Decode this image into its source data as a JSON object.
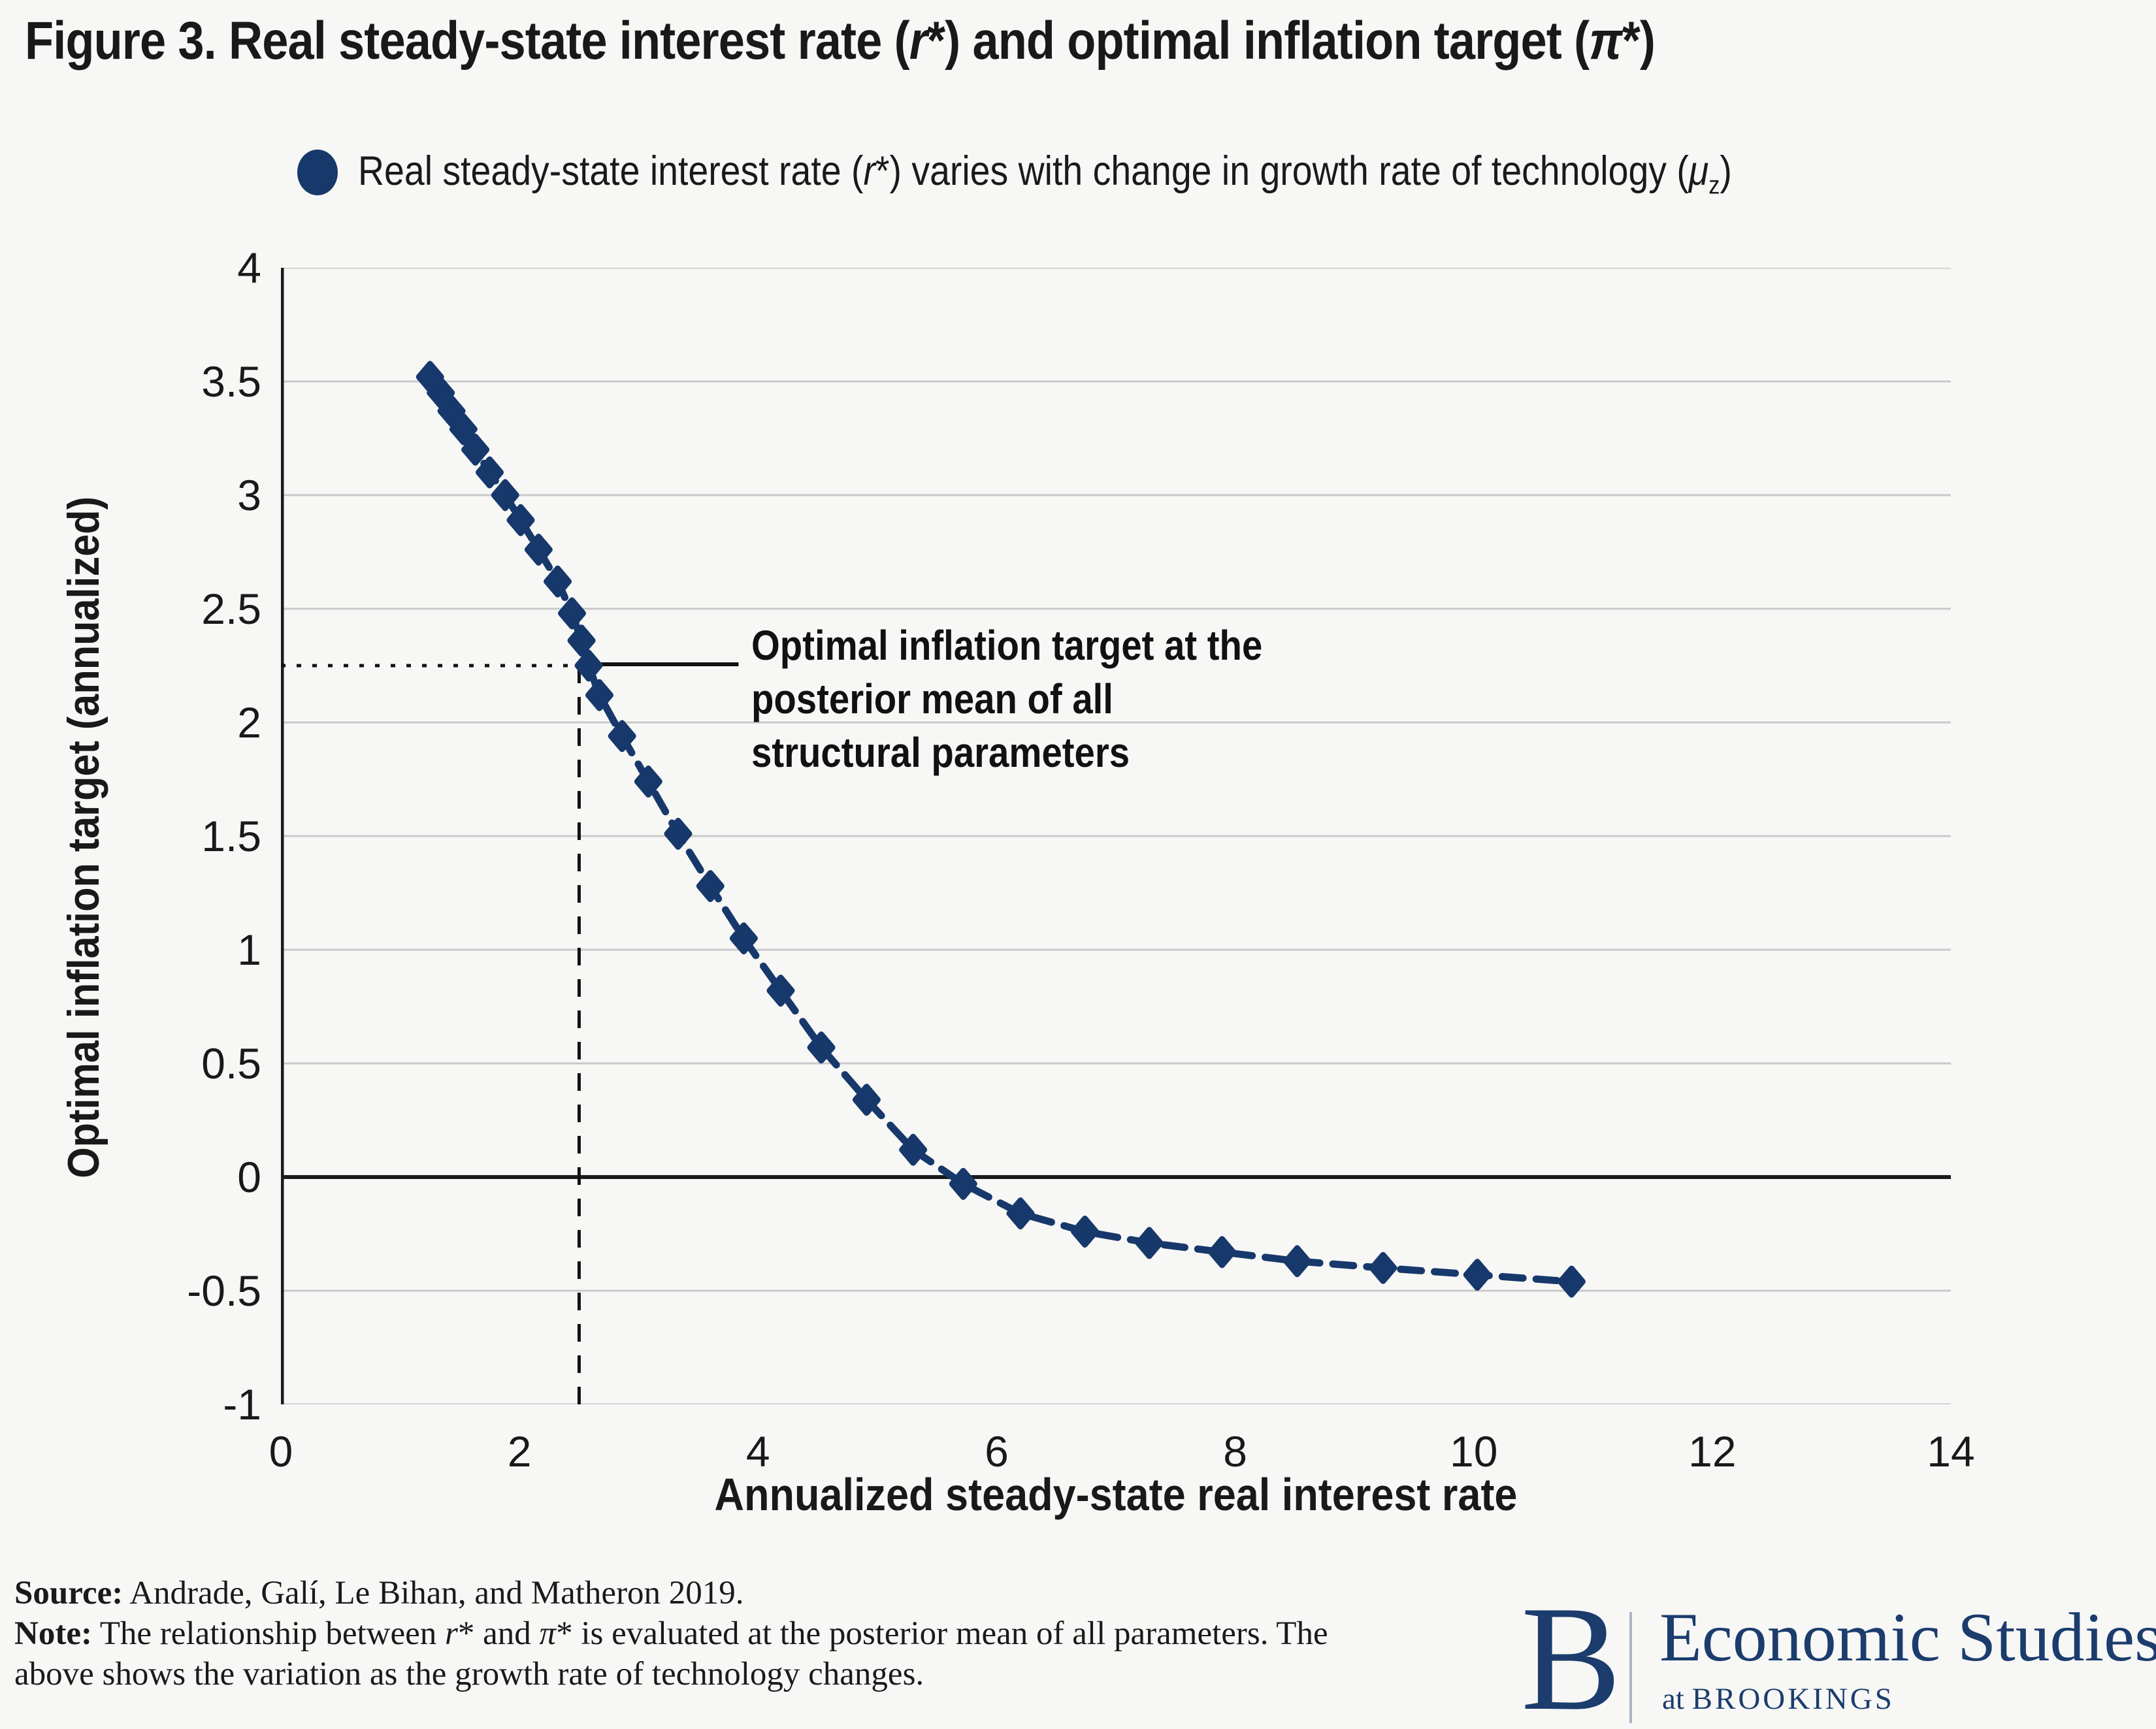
{
  "page": {
    "background": "#f7f7f5",
    "accent_navy": "#17386b",
    "grid_color": "#c9c9c9"
  },
  "title": {
    "segments": [
      "Figure 3. Real steady-state interest rate (",
      "r",
      "*) and optimal inflation target (",
      "π",
      "*)"
    ]
  },
  "legend": {
    "marker": "circle-icon",
    "marker_color": "#17386b",
    "segments": [
      "Real steady-state interest rate (",
      "r",
      "*) varies with change in growth rate of technology (",
      "μ",
      "z",
      ")"
    ]
  },
  "annotation": {
    "lines": [
      "Optimal inflation target at the",
      "posterior mean of all",
      "structural parameters"
    ]
  },
  "axes": {
    "y_title": "Optimal inflation target (annualized)",
    "x_title": "Annualized steady-state real interest rate",
    "y_ticks": [
      "4",
      "3.5",
      "3",
      "2.5",
      "2",
      "1.5",
      "1",
      "0.5",
      "0",
      "-0.5",
      "-1"
    ],
    "x_ticks": [
      "0",
      "2",
      "4",
      "6",
      "8",
      "10",
      "12",
      "14"
    ]
  },
  "chart_data": {
    "type": "scatter",
    "title": "Figure 3. Real steady-state interest rate (r*) and optimal inflation target (π*)",
    "xlabel": "Annualized steady-state real interest rate",
    "ylabel": "Optimal inflation target (annualized)",
    "xlim": [
      0,
      14
    ],
    "ylim": [
      -1,
      4
    ],
    "x_tick_values": [
      0,
      2,
      4,
      6,
      8,
      10,
      12,
      14
    ],
    "y_tick_step": 0.5,
    "grid": "horizontal-only",
    "zero_line": 0,
    "legend_position": "top",
    "crosshair": {
      "x": 2.5,
      "y": 2.25,
      "horizontal_style": "dotted",
      "vertical_style": "dashed"
    },
    "series": [
      {
        "name": "Real steady-state interest rate (r*) varies with change in growth rate of technology (μz)",
        "color": "#17386b",
        "line_style": "dashed",
        "marker": "diamond",
        "points": [
          [
            1.25,
            3.52
          ],
          [
            1.34,
            3.45
          ],
          [
            1.43,
            3.37
          ],
          [
            1.53,
            3.29
          ],
          [
            1.63,
            3.2
          ],
          [
            1.75,
            3.1
          ],
          [
            1.88,
            3.0
          ],
          [
            2.01,
            2.89
          ],
          [
            2.16,
            2.76
          ],
          [
            2.32,
            2.62
          ],
          [
            2.44,
            2.48
          ],
          [
            2.52,
            2.36
          ],
          [
            2.58,
            2.25
          ],
          [
            2.67,
            2.12
          ],
          [
            2.86,
            1.94
          ],
          [
            3.08,
            1.74
          ],
          [
            3.33,
            1.51
          ],
          [
            3.6,
            1.28
          ],
          [
            3.88,
            1.05
          ],
          [
            4.19,
            0.82
          ],
          [
            4.53,
            0.57
          ],
          [
            4.91,
            0.34
          ],
          [
            5.3,
            0.12
          ],
          [
            5.72,
            -0.03
          ],
          [
            6.2,
            -0.16
          ],
          [
            6.74,
            -0.24
          ],
          [
            7.28,
            -0.29
          ],
          [
            7.89,
            -0.33
          ],
          [
            8.52,
            -0.37
          ],
          [
            9.24,
            -0.4
          ],
          [
            10.03,
            -0.43
          ],
          [
            10.82,
            -0.46
          ]
        ]
      }
    ]
  },
  "footer": {
    "source_label": "Source:",
    "source_text": " Andrade, Galí, Le Bihan, and Matheron 2019.",
    "note_label": "Note:",
    "note_segments": [
      " The relationship between ",
      "r",
      "* and ",
      "π",
      "* is evaluated at the posterior mean of all parameters. The above shows the variation as the growth rate of technology changes."
    ]
  },
  "logo": {
    "b": "B",
    "line1": "Economic Studies",
    "line2_prefix": "at ",
    "line2": "BROOKINGS",
    "color": "#1b3c6d"
  }
}
